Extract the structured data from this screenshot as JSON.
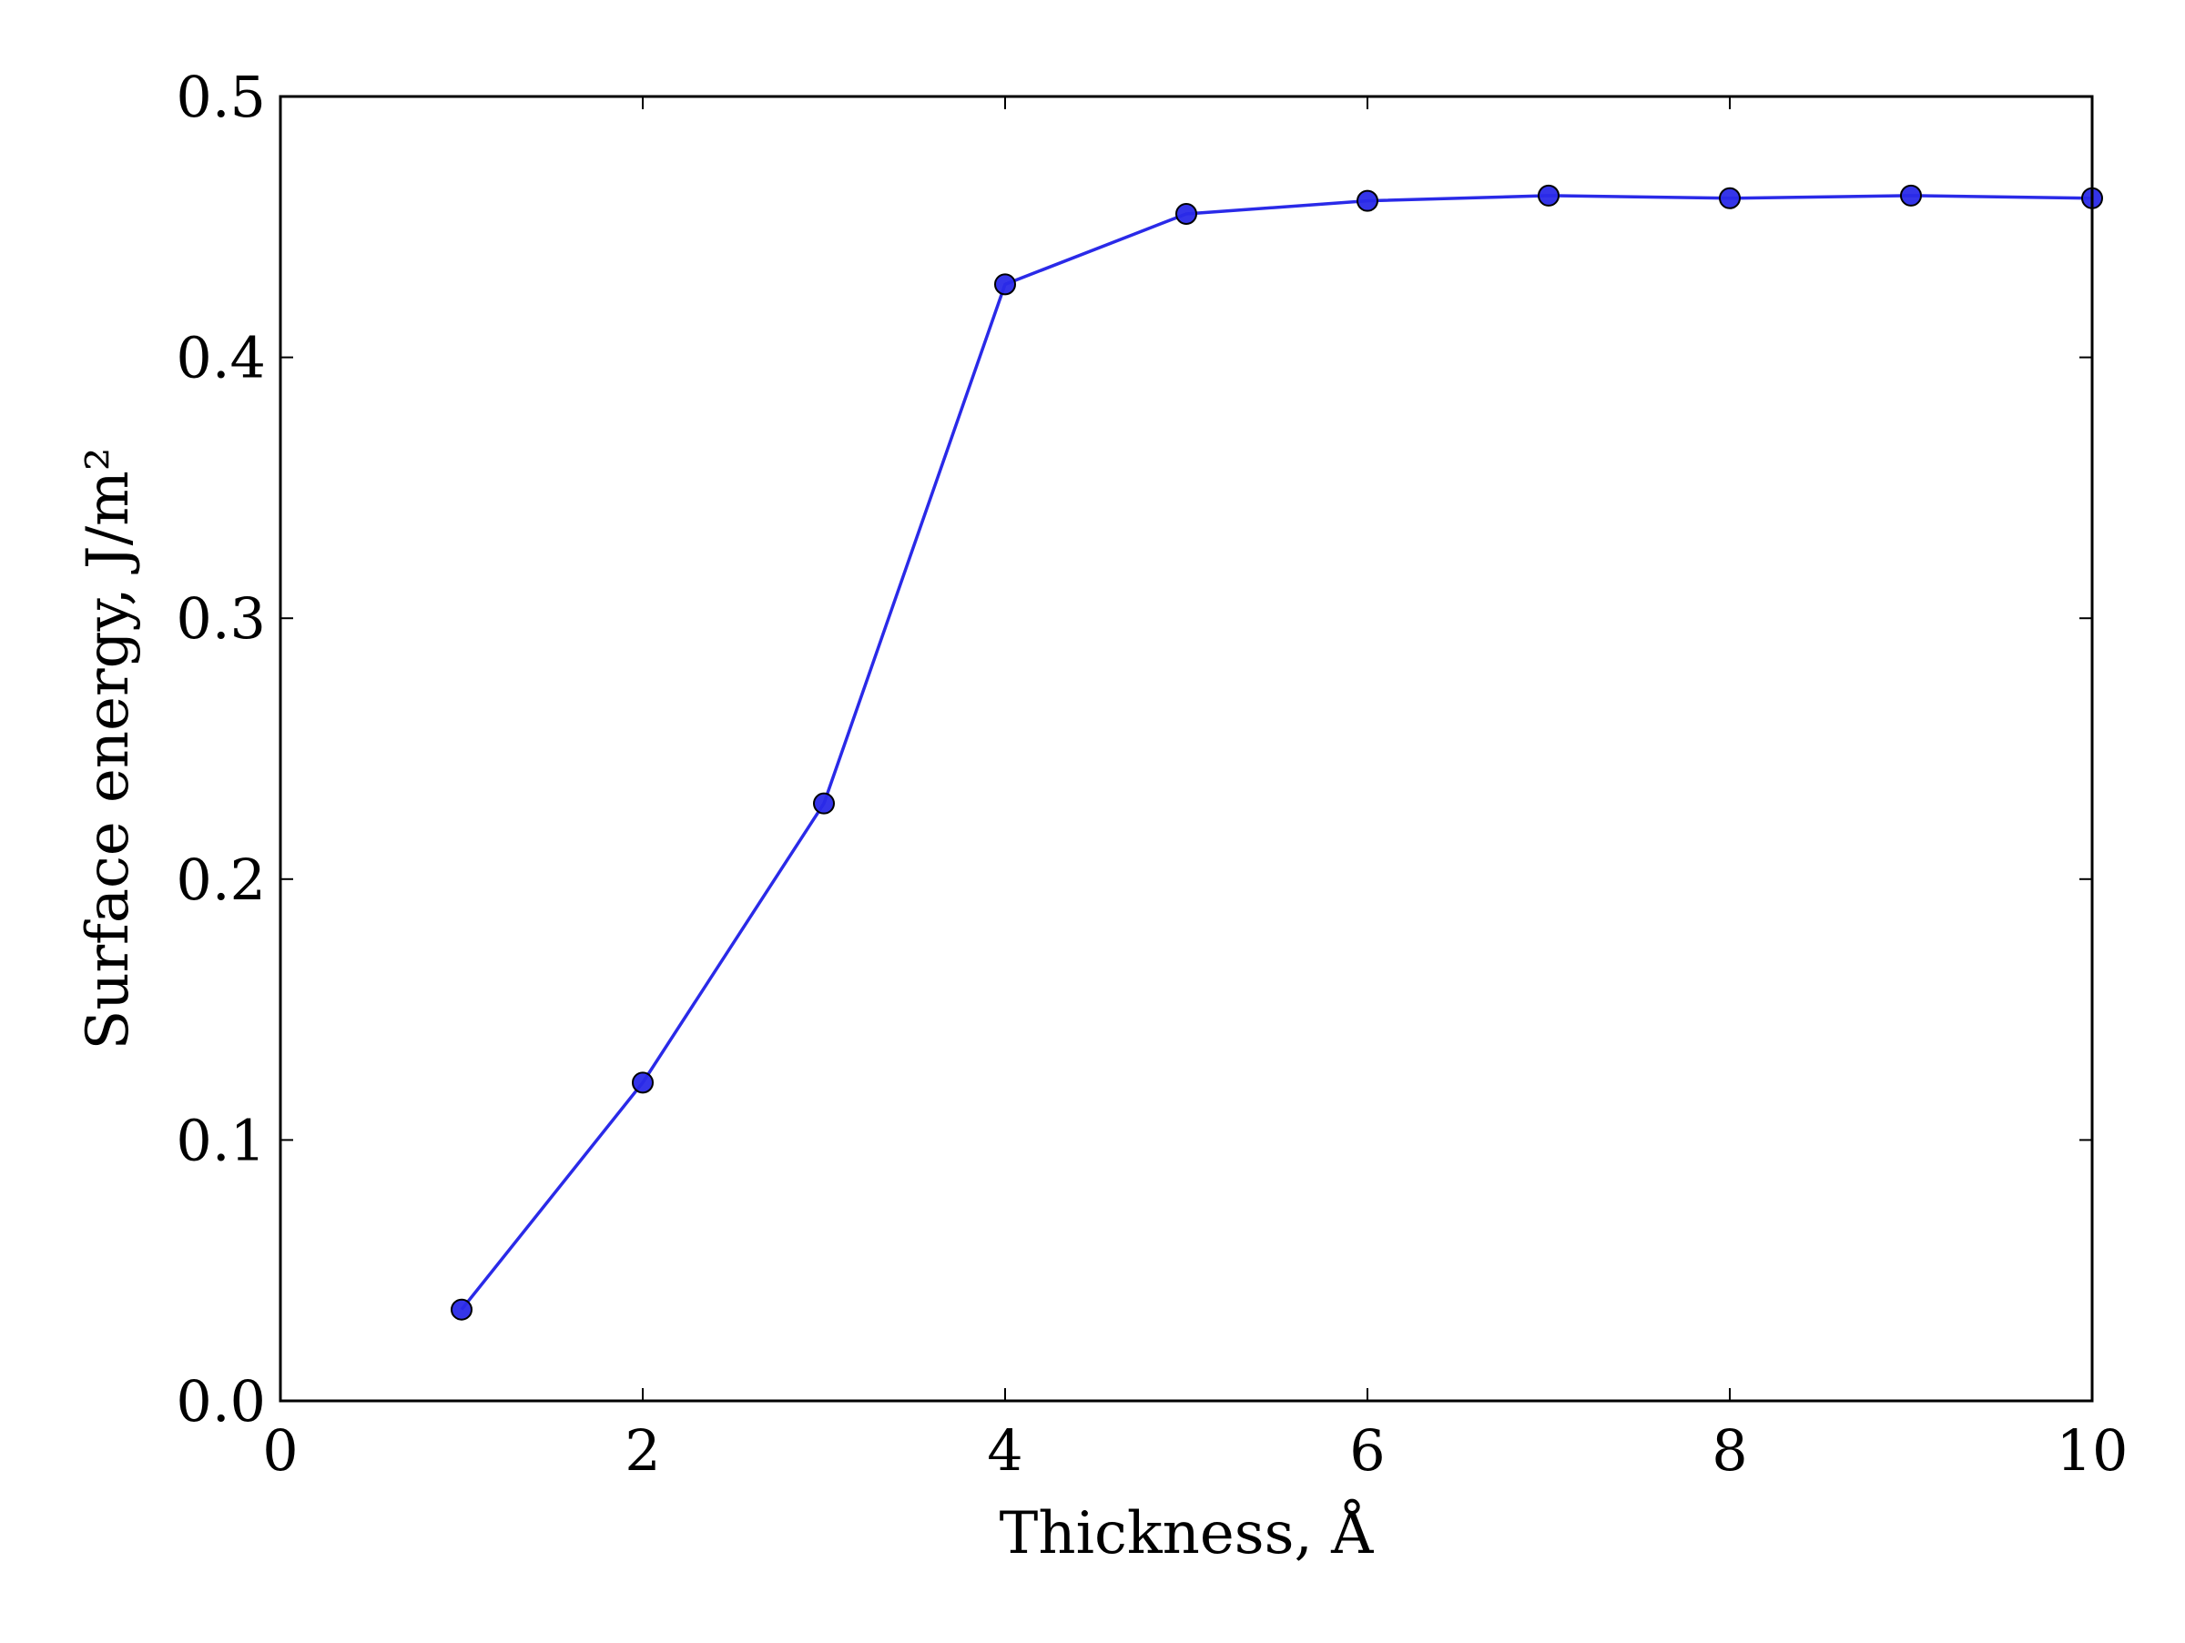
{
  "chart_data": {
    "type": "line",
    "title": "",
    "xlabel": "Thickness, Å",
    "ylabel": "Surface energy, J/m²",
    "xlim": [
      0,
      10
    ],
    "ylim": [
      0.0,
      0.5
    ],
    "x_ticks": [
      "0",
      "2",
      "4",
      "6",
      "8",
      "10"
    ],
    "y_ticks": [
      "0.0",
      "0.1",
      "0.2",
      "0.3",
      "0.4",
      "0.5"
    ],
    "grid": false,
    "legend": "none",
    "series": [
      {
        "color": "#2a2ae8",
        "marker": "circle",
        "x": [
          1,
          2,
          3,
          4,
          5,
          6,
          7,
          8,
          9,
          10
        ],
        "y": [
          0.035,
          0.122,
          0.229,
          0.428,
          0.455,
          0.46,
          0.462,
          0.461,
          0.462,
          0.461
        ]
      }
    ]
  }
}
